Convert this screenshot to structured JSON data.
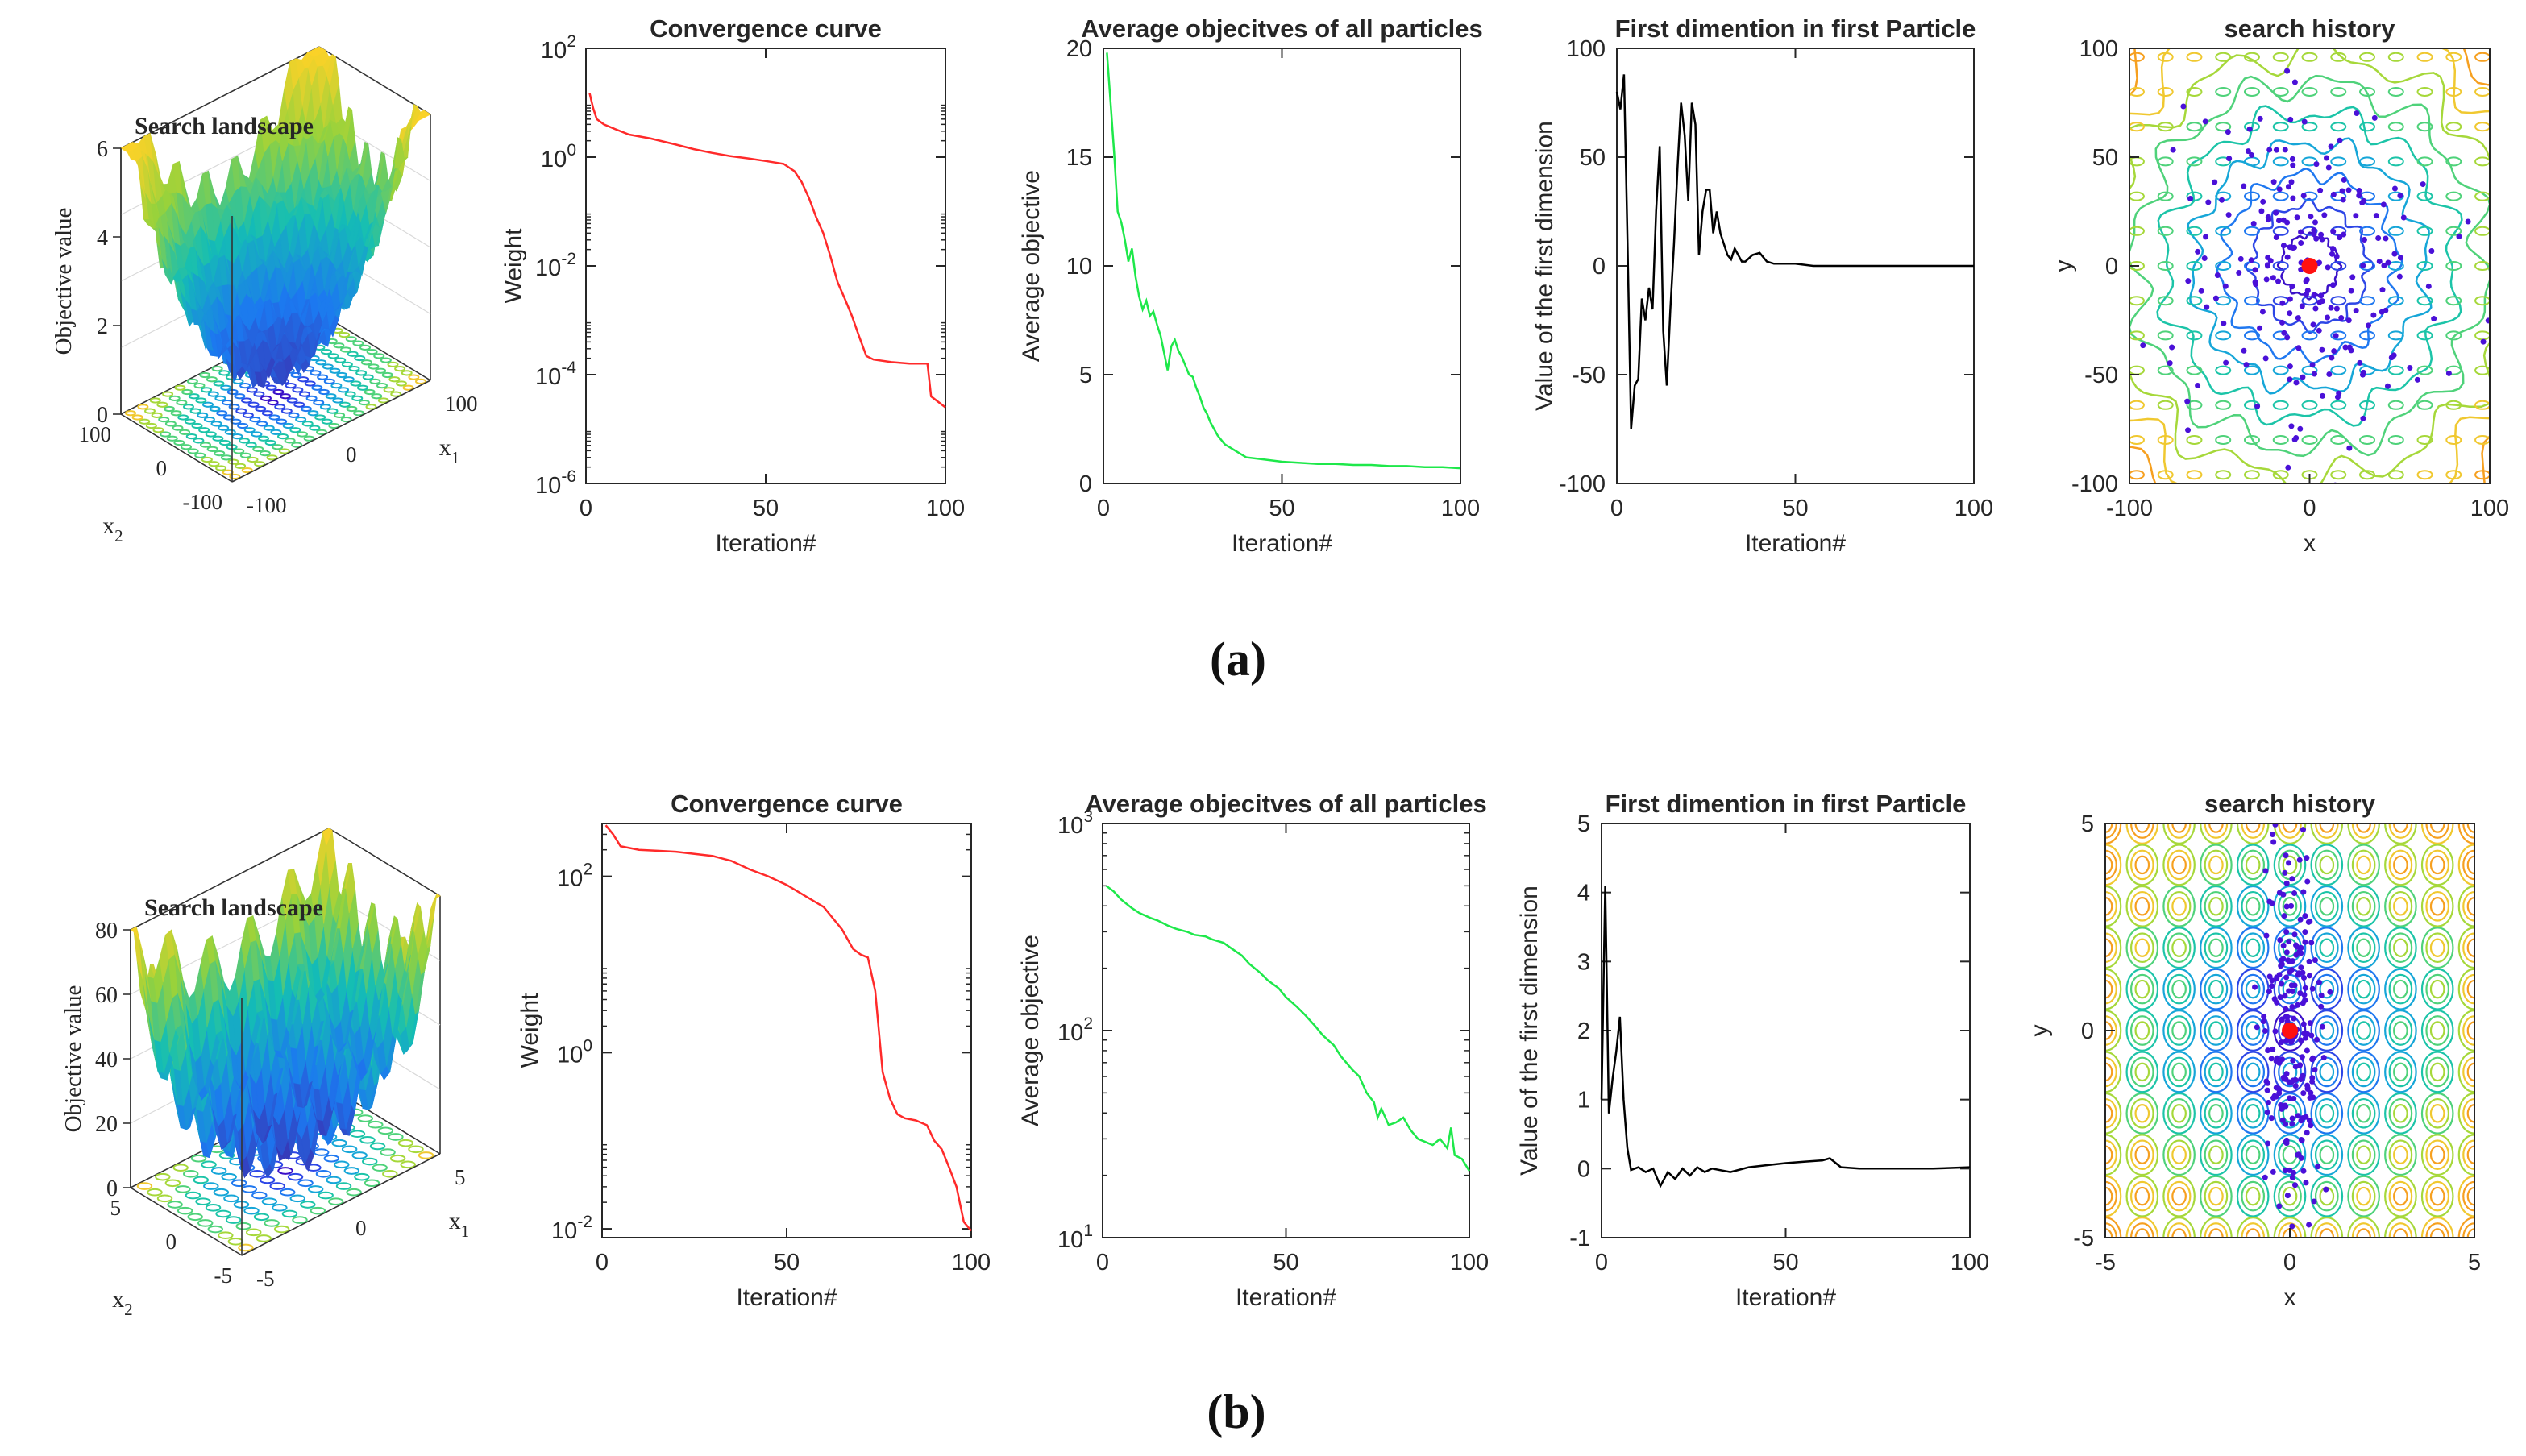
{
  "figure": {
    "panel_a_label": "(a)",
    "panel_b_label": "(b)"
  },
  "colors": {
    "convergence": "#ff2a2a",
    "average": "#1ee84a",
    "trajectory": "#000000",
    "particles": "#4a10d8",
    "best": "#ff1010"
  },
  "chart_data": [
    {
      "id": "a_landscape",
      "type": "surface",
      "title": "Search landscape",
      "zlabel": "Objective value",
      "xlabel": "x",
      "xlabel_sub": "1",
      "ylabel": "x",
      "ylabel_sub": "2",
      "zticks": [
        "0",
        "2",
        "4",
        "6"
      ],
      "xticks": [
        "-100",
        "0",
        "100"
      ],
      "yticks": [
        "-100",
        "0",
        "100"
      ],
      "zlim": [
        0,
        6
      ],
      "range": [
        -100,
        100
      ]
    },
    {
      "id": "a_convergence",
      "type": "line",
      "title": "Convergence curve",
      "xlabel": "Iteration#",
      "ylabel": "Weight",
      "yscale": "log",
      "xlim": [
        0,
        100
      ],
      "ylim_exp": [
        -6,
        2
      ],
      "xticks": [
        "0",
        "50",
        "100"
      ],
      "yticks": [
        {
          "base": "10",
          "exp": "2"
        },
        {
          "base": "10",
          "exp": "0"
        },
        {
          "base": "10",
          "exp": "-2"
        },
        {
          "base": "10",
          "exp": "-4"
        },
        {
          "base": "10",
          "exp": "-6"
        }
      ],
      "series": [
        {
          "name": "best",
          "x": [
            1,
            2,
            3,
            5,
            8,
            12,
            18,
            25,
            30,
            35,
            40,
            45,
            50,
            55,
            58,
            60,
            62,
            64,
            66,
            68,
            70,
            72,
            74,
            76,
            78,
            80,
            85,
            90,
            95,
            96,
            100
          ],
          "y": [
            15,
            8,
            5,
            4,
            3.3,
            2.6,
            2.2,
            1.7,
            1.4,
            1.2,
            1.05,
            0.95,
            0.85,
            0.75,
            0.55,
            0.35,
            0.18,
            0.08,
            0.04,
            0.015,
            0.005,
            0.0025,
            0.0012,
            0.0005,
            0.00022,
            0.00019,
            0.00017,
            0.00016,
            0.00016,
            4e-05,
            2.5e-05
          ]
        }
      ]
    },
    {
      "id": "a_average",
      "type": "line",
      "title": "Average objecitves of all particles",
      "xlabel": "Iteration#",
      "ylabel": "Average objective",
      "yscale": "linear",
      "xlim": [
        0,
        100
      ],
      "ylim": [
        0,
        20
      ],
      "xticks": [
        "0",
        "50",
        "100"
      ],
      "yticks": [
        "0",
        "5",
        "10",
        "15",
        "20"
      ],
      "series": [
        {
          "name": "average",
          "x": [
            1,
            2,
            3,
            4,
            5,
            6,
            7,
            8,
            9,
            10,
            11,
            12,
            13,
            14,
            15,
            16,
            17,
            18,
            19,
            20,
            21,
            22,
            23,
            24,
            25,
            26,
            27,
            28,
            29,
            30,
            32,
            34,
            36,
            38,
            40,
            45,
            50,
            55,
            60,
            65,
            70,
            75,
            80,
            85,
            90,
            95,
            100
          ],
          "y": [
            19.8,
            17.5,
            15.2,
            12.5,
            12.0,
            11.2,
            10.2,
            10.8,
            9.5,
            8.6,
            8.0,
            8.4,
            7.7,
            7.9,
            7.3,
            6.8,
            6.0,
            5.2,
            6.3,
            6.6,
            6.1,
            5.8,
            5.4,
            5.0,
            4.9,
            4.4,
            4.0,
            3.5,
            3.2,
            2.8,
            2.2,
            1.8,
            1.6,
            1.4,
            1.2,
            1.1,
            1.0,
            0.95,
            0.9,
            0.9,
            0.85,
            0.85,
            0.8,
            0.8,
            0.75,
            0.75,
            0.7
          ]
        }
      ]
    },
    {
      "id": "a_trajectory",
      "type": "line",
      "title": "First dimention in first Particle",
      "xlabel": "Iteration#",
      "ylabel": "Value of the first dimension",
      "yscale": "linear",
      "xlim": [
        0,
        100
      ],
      "ylim": [
        -100,
        100
      ],
      "xticks": [
        "0",
        "50",
        "100"
      ],
      "yticks": [
        "-100",
        "-50",
        "0",
        "50",
        "100"
      ],
      "series": [
        {
          "name": "trajectory",
          "x": [
            0,
            1,
            2,
            3,
            4,
            5,
            6,
            7,
            8,
            9,
            10,
            11,
            12,
            13,
            14,
            15,
            16,
            17,
            18,
            19,
            20,
            21,
            22,
            23,
            24,
            25,
            26,
            27,
            28,
            29,
            30,
            31,
            32,
            33,
            34,
            35,
            36,
            38,
            40,
            42,
            44,
            46,
            50,
            55,
            60,
            70,
            80,
            90,
            100
          ],
          "y": [
            80,
            72,
            88,
            10,
            -75,
            -55,
            -52,
            -15,
            -25,
            -10,
            -20,
            25,
            55,
            -30,
            -55,
            -20,
            10,
            45,
            75,
            60,
            30,
            75,
            65,
            5,
            25,
            35,
            35,
            15,
            25,
            15,
            10,
            5,
            3,
            8,
            5,
            2,
            2,
            5,
            6,
            2,
            1,
            1,
            1,
            0,
            0,
            0,
            0,
            0,
            0
          ]
        }
      ]
    },
    {
      "id": "a_history",
      "type": "contour",
      "title": "search history",
      "xlabel": "x",
      "ylabel": "y",
      "xlim": [
        -100,
        100
      ],
      "ylim": [
        -100,
        100
      ],
      "xticks": [
        "-100",
        "0",
        "100"
      ],
      "yticks": [
        "-100",
        "-50",
        "0",
        "50",
        "100"
      ],
      "spread": [
        35,
        40
      ],
      "points": 220,
      "best": [
        0,
        0
      ]
    },
    {
      "id": "b_landscape",
      "type": "surface",
      "title": "Search landscape",
      "zlabel": "Objective value",
      "xlabel": "x",
      "xlabel_sub": "1",
      "ylabel": "x",
      "ylabel_sub": "2",
      "zticks": [
        "0",
        "20",
        "40",
        "60",
        "80"
      ],
      "xticks": [
        "-5",
        "0",
        "5"
      ],
      "yticks": [
        "-5",
        "0",
        "5"
      ],
      "zlim": [
        0,
        80
      ],
      "range": [
        -5,
        5
      ]
    },
    {
      "id": "b_convergence",
      "type": "line",
      "title": "Convergence curve",
      "xlabel": "Iteration#",
      "ylabel": "Weight",
      "yscale": "log",
      "xlim": [
        0,
        100
      ],
      "ylim_exp": [
        -2.1,
        2.6
      ],
      "xticks": [
        "0",
        "50",
        "100"
      ],
      "yticks": [
        {
          "base": "10",
          "exp": "2"
        },
        {
          "base": "10",
          "exp": "0"
        },
        {
          "base": "10",
          "exp": "-2"
        }
      ],
      "series": [
        {
          "name": "best",
          "x": [
            1,
            3,
            5,
            10,
            15,
            20,
            25,
            30,
            35,
            40,
            45,
            50,
            55,
            60,
            65,
            68,
            70,
            72,
            74,
            76,
            78,
            80,
            82,
            85,
            88,
            90,
            92,
            94,
            96,
            98,
            100
          ],
          "y": [
            380,
            300,
            220,
            200,
            195,
            190,
            180,
            170,
            150,
            120,
            100,
            80,
            60,
            45,
            25,
            15,
            13,
            12,
            5,
            0.6,
            0.3,
            0.2,
            0.18,
            0.17,
            0.15,
            0.1,
            0.08,
            0.05,
            0.03,
            0.012,
            0.0095
          ]
        }
      ]
    },
    {
      "id": "b_average",
      "type": "line",
      "title": "Average objecitves of all particles",
      "xlabel": "Iteration#",
      "ylabel": "Average objective",
      "yscale": "log",
      "xlim": [
        0,
        100
      ],
      "ylim_exp": [
        1,
        3
      ],
      "xticks": [
        "0",
        "50",
        "100"
      ],
      "yticks": [
        {
          "base": "10",
          "exp": "3"
        },
        {
          "base": "10",
          "exp": "2"
        },
        {
          "base": "10",
          "exp": "1"
        }
      ],
      "series": [
        {
          "name": "average",
          "x": [
            1,
            3,
            5,
            8,
            10,
            13,
            15,
            18,
            20,
            23,
            25,
            28,
            30,
            33,
            35,
            38,
            40,
            43,
            45,
            48,
            50,
            53,
            55,
            58,
            60,
            63,
            65,
            68,
            70,
            72,
            74,
            75,
            76,
            78,
            80,
            82,
            84,
            86,
            88,
            90,
            92,
            94,
            95,
            96,
            98,
            100
          ],
          "y": [
            500,
            470,
            430,
            390,
            370,
            350,
            340,
            320,
            310,
            300,
            290,
            285,
            275,
            265,
            250,
            230,
            210,
            190,
            175,
            160,
            145,
            130,
            120,
            105,
            95,
            85,
            75,
            65,
            60,
            50,
            45,
            38,
            42,
            35,
            36,
            38,
            33,
            30,
            29,
            28,
            30,
            27,
            34,
            25,
            24,
            21
          ]
        }
      ]
    },
    {
      "id": "b_trajectory",
      "type": "line",
      "title": "First dimention in first Particle",
      "xlabel": "Iteration#",
      "ylabel": "Value of the first dimension",
      "yscale": "linear",
      "xlim": [
        0,
        100
      ],
      "ylim": [
        -1,
        5
      ],
      "xticks": [
        "0",
        "50",
        "100"
      ],
      "yticks": [
        "-1",
        "0",
        "1",
        "2",
        "3",
        "4",
        "5"
      ],
      "series": [
        {
          "name": "trajectory",
          "x": [
            0,
            1,
            2,
            3,
            4,
            5,
            6,
            7,
            8,
            10,
            12,
            14,
            16,
            18,
            20,
            22,
            24,
            26,
            28,
            30,
            35,
            40,
            45,
            50,
            55,
            60,
            62,
            65,
            70,
            80,
            90,
            100
          ],
          "y": [
            1.0,
            4.1,
            0.8,
            1.3,
            1.7,
            2.2,
            1.0,
            0.3,
            -0.02,
            0.02,
            -0.05,
            0.0,
            -0.25,
            -0.05,
            -0.15,
            0.0,
            -0.1,
            0.02,
            -0.05,
            0.0,
            -0.05,
            0.02,
            0.05,
            0.08,
            0.1,
            0.12,
            0.15,
            0.02,
            0.0,
            0.0,
            0.0,
            0.02
          ]
        }
      ]
    },
    {
      "id": "b_history",
      "type": "contour",
      "title": "search history",
      "xlabel": "x",
      "ylabel": "y",
      "xlim": [
        -5,
        5
      ],
      "ylim": [
        -5,
        5
      ],
      "xticks": [
        "-5",
        "0",
        "5"
      ],
      "yticks": [
        "-5",
        "0",
        "5"
      ],
      "spread": [
        0.4,
        2.2
      ],
      "points": 220,
      "best": [
        0,
        0
      ]
    }
  ]
}
